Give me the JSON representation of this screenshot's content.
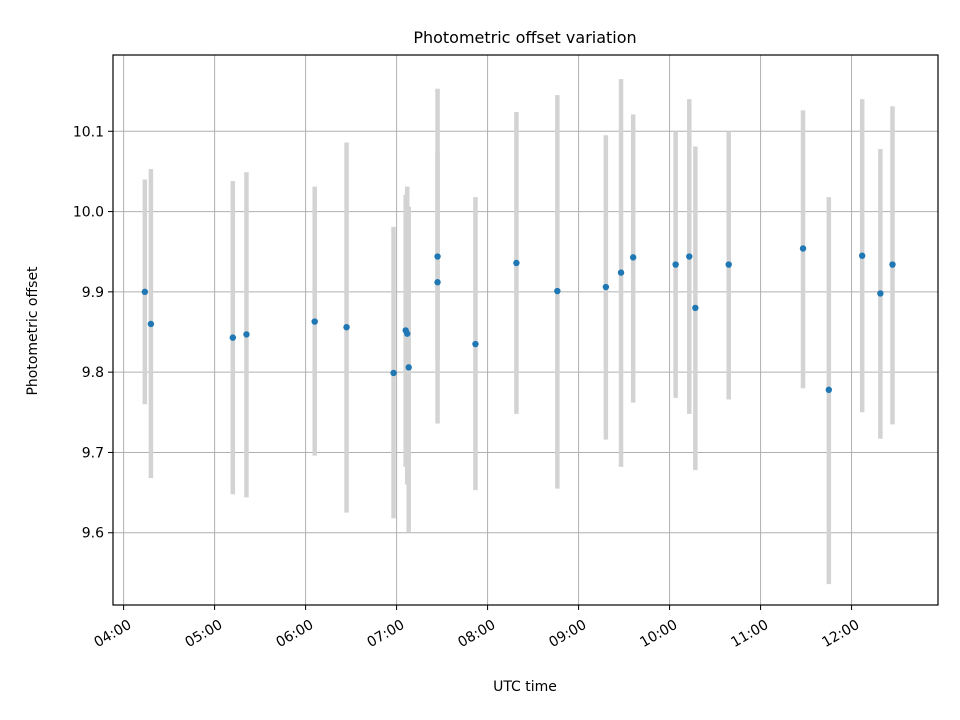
{
  "chart_data": {
    "type": "scatter",
    "title": "Photometric offset variation",
    "xlabel": "UTC time",
    "ylabel": "Photometric offset",
    "grid": true,
    "xlim": [
      "03:53",
      "12:57"
    ],
    "ylim": [
      9.51,
      10.195
    ],
    "x_ticks": [
      "04:00",
      "05:00",
      "06:00",
      "07:00",
      "08:00",
      "09:00",
      "10:00",
      "11:00",
      "12:00"
    ],
    "y_ticks": [
      9.6,
      9.7,
      9.8,
      9.9,
      10.0,
      10.1
    ],
    "point_color": "#1f77b4",
    "errorbar_color": "#d3d3d3",
    "points": [
      {
        "t": "04:14",
        "y": 9.9,
        "lo": 9.76,
        "hi": 10.04
      },
      {
        "t": "04:18",
        "y": 9.86,
        "lo": 9.668,
        "hi": 10.053
      },
      {
        "t": "05:12",
        "y": 9.843,
        "lo": 9.648,
        "hi": 10.038
      },
      {
        "t": "05:21",
        "y": 9.847,
        "lo": 9.644,
        "hi": 10.049
      },
      {
        "t": "06:06",
        "y": 9.863,
        "lo": 9.696,
        "hi": 10.031
      },
      {
        "t": "06:27",
        "y": 9.856,
        "lo": 9.625,
        "hi": 10.086
      },
      {
        "t": "06:58",
        "y": 9.799,
        "lo": 9.618,
        "hi": 9.981
      },
      {
        "t": "07:06",
        "y": 9.852,
        "lo": 9.682,
        "hi": 10.021
      },
      {
        "t": "07:07",
        "y": 9.848,
        "lo": 9.66,
        "hi": 10.031
      },
      {
        "t": "07:08",
        "y": 9.806,
        "lo": 9.601,
        "hi": 10.006
      },
      {
        "t": "07:27",
        "y": 9.944,
        "lo": 9.815,
        "hi": 10.073
      },
      {
        "t": "07:27",
        "y": 9.912,
        "lo": 9.736,
        "hi": 10.153
      },
      {
        "t": "07:52",
        "y": 9.835,
        "lo": 9.653,
        "hi": 10.018
      },
      {
        "t": "08:19",
        "y": 9.936,
        "lo": 9.748,
        "hi": 10.124
      },
      {
        "t": "08:46",
        "y": 9.901,
        "lo": 9.655,
        "hi": 10.145
      },
      {
        "t": "09:18",
        "y": 9.906,
        "lo": 9.716,
        "hi": 10.095
      },
      {
        "t": "09:28",
        "y": 9.924,
        "lo": 9.682,
        "hi": 10.165
      },
      {
        "t": "09:36",
        "y": 9.943,
        "lo": 9.762,
        "hi": 10.121
      },
      {
        "t": "10:04",
        "y": 9.934,
        "lo": 9.768,
        "hi": 10.1
      },
      {
        "t": "10:13",
        "y": 9.944,
        "lo": 9.748,
        "hi": 10.14
      },
      {
        "t": "10:17",
        "y": 9.88,
        "lo": 9.678,
        "hi": 10.081
      },
      {
        "t": "10:39",
        "y": 9.934,
        "lo": 9.766,
        "hi": 10.1
      },
      {
        "t": "11:28",
        "y": 9.954,
        "lo": 9.78,
        "hi": 10.126
      },
      {
        "t": "11:45",
        "y": 9.778,
        "lo": 9.536,
        "hi": 10.018
      },
      {
        "t": "12:07",
        "y": 9.945,
        "lo": 9.75,
        "hi": 10.14
      },
      {
        "t": "12:19",
        "y": 9.898,
        "lo": 9.717,
        "hi": 10.078
      },
      {
        "t": "12:27",
        "y": 9.934,
        "lo": 9.735,
        "hi": 10.131
      }
    ]
  }
}
